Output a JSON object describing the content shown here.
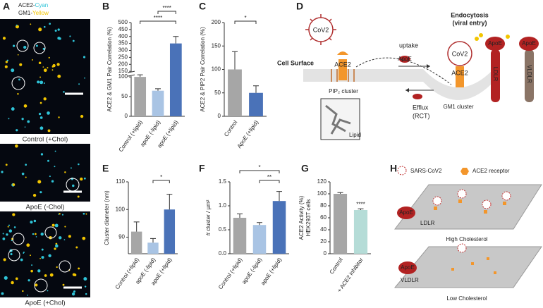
{
  "panels": [
    "A",
    "B",
    "C",
    "D",
    "E",
    "F",
    "G",
    "H"
  ],
  "panel_a": {
    "legend": [
      {
        "name": "ACE2",
        "sep": "-",
        "color_word": "Cyan",
        "color": "#2fc4d8"
      },
      {
        "name": "GM1",
        "sep": "-",
        "color_word": "Yellow",
        "color": "#f2c500"
      }
    ],
    "captions": [
      "Control (+Chol)",
      "ApoE (-Chol)",
      "ApoE (+Chol)"
    ]
  },
  "chart_data": [
    {
      "type": "bar",
      "ylabel": "ACE2 & GM1 Pair Correlation (%)",
      "categories": [
        "Control (+lipid)",
        "apoE (-lipid)",
        "apoE (+lipid)"
      ],
      "values": [
        100,
        65,
        350
      ],
      "errors": [
        25,
        5,
        50
      ],
      "colors": [
        "#a6a6a6",
        "#a9c4e4",
        "#4a72b8"
      ],
      "ylim": [
        0,
        500
      ],
      "yticks": [
        0,
        50,
        100,
        150,
        200,
        250,
        300,
        350,
        400,
        450,
        500
      ],
      "axis_break": [
        100,
        150
      ],
      "significance": [
        {
          "from": 0,
          "to": 2,
          "label": "****"
        },
        {
          "from": 1,
          "to": 2,
          "label": "****"
        }
      ]
    },
    {
      "type": "bar",
      "ylabel": "ACE2 & PIP2 Pair Correlation (%)",
      "categories": [
        "Control",
        "ApoE (+lipid)"
      ],
      "values": [
        100,
        50
      ],
      "errors": [
        38,
        15
      ],
      "colors": [
        "#a6a6a6",
        "#4a72b8"
      ],
      "ylim": [
        0,
        200
      ],
      "yticks": [
        0,
        50,
        100,
        150,
        200
      ],
      "significance": [
        {
          "from": 0,
          "to": 1,
          "label": "*"
        }
      ]
    },
    {
      "type": "bar",
      "ylabel": "Cluster diameter (nm)",
      "categories": [
        "Control (+lipid)",
        "apoE (-lipid)",
        "apoE (+lipid)"
      ],
      "values": [
        92,
        88,
        100
      ],
      "errors": [
        3.5,
        1.5,
        5.5
      ],
      "colors": [
        "#a6a6a6",
        "#a9c4e4",
        "#4a72b8"
      ],
      "ylim": [
        84,
        110
      ],
      "yticks": [
        90,
        100,
        110
      ],
      "significance": [
        {
          "from": 1,
          "to": 2,
          "label": "*"
        }
      ]
    },
    {
      "type": "bar",
      "ylabel": "# cluster / µm²",
      "categories": [
        "Control (+lipid)",
        "apoE (-lipid)",
        "apoE (+lipid)"
      ],
      "values": [
        0.75,
        0.6,
        1.1
      ],
      "errors": [
        0.08,
        0.05,
        0.2
      ],
      "colors": [
        "#a6a6a6",
        "#a9c4e4",
        "#4a72b8"
      ],
      "ylim": [
        0,
        1.5
      ],
      "yticks": [
        {
          "value": 0,
          "label": "0.0"
        },
        0.5,
        {
          "value": 1,
          "label": "1.0"
        },
        1.5
      ],
      "significance": [
        {
          "from": 1,
          "to": 2,
          "label": "**"
        },
        {
          "from": 0,
          "to": 2,
          "label": "*"
        }
      ]
    },
    {
      "type": "bar",
      "ylabel": [
        "ACE2 Activity (%)",
        "HEK293T cells"
      ],
      "categories": [
        "Control",
        "+ ACE2 inhibitor"
      ],
      "values": [
        100,
        73
      ],
      "errors": [
        2,
        2
      ],
      "colors": [
        "#a6a6a6",
        "#b5dcd7"
      ],
      "ylim": [
        0,
        120
      ],
      "yticks": [
        0,
        20,
        40,
        60,
        80,
        100,
        120
      ],
      "significance": [
        {
          "from": 1,
          "to": 1,
          "label": "****"
        }
      ]
    }
  ],
  "diagram_d": {
    "virus": "CoV2",
    "cell_surface": "Cell Surface",
    "ace2": "ACE2",
    "pip2": "PIP₂ cluster",
    "uptake": "uptake",
    "apoe_small": "ApoE",
    "lipid": "Lipid",
    "efflux": [
      "Efflux",
      "(RCT)"
    ],
    "endocytosis": [
      "Endocytosis",
      "(viral entry)"
    ],
    "virus2": "CoV2",
    "ace2_2": "ACE2",
    "apoe": [
      "ApoE",
      "ApoE"
    ],
    "receptors": [
      "LDLR",
      "VLDLR"
    ],
    "gm1": "GM1 cluster"
  },
  "diagram_h": {
    "legend": [
      "SARS-CoV2",
      "ACE2 receptor"
    ],
    "high": "High Cholesterol",
    "low": "Low Cholesterol",
    "apoe_high": "ApoE",
    "ldlr": "LDLR",
    "apoe_low": "ApoE",
    "vldlr": "VLDLR"
  }
}
